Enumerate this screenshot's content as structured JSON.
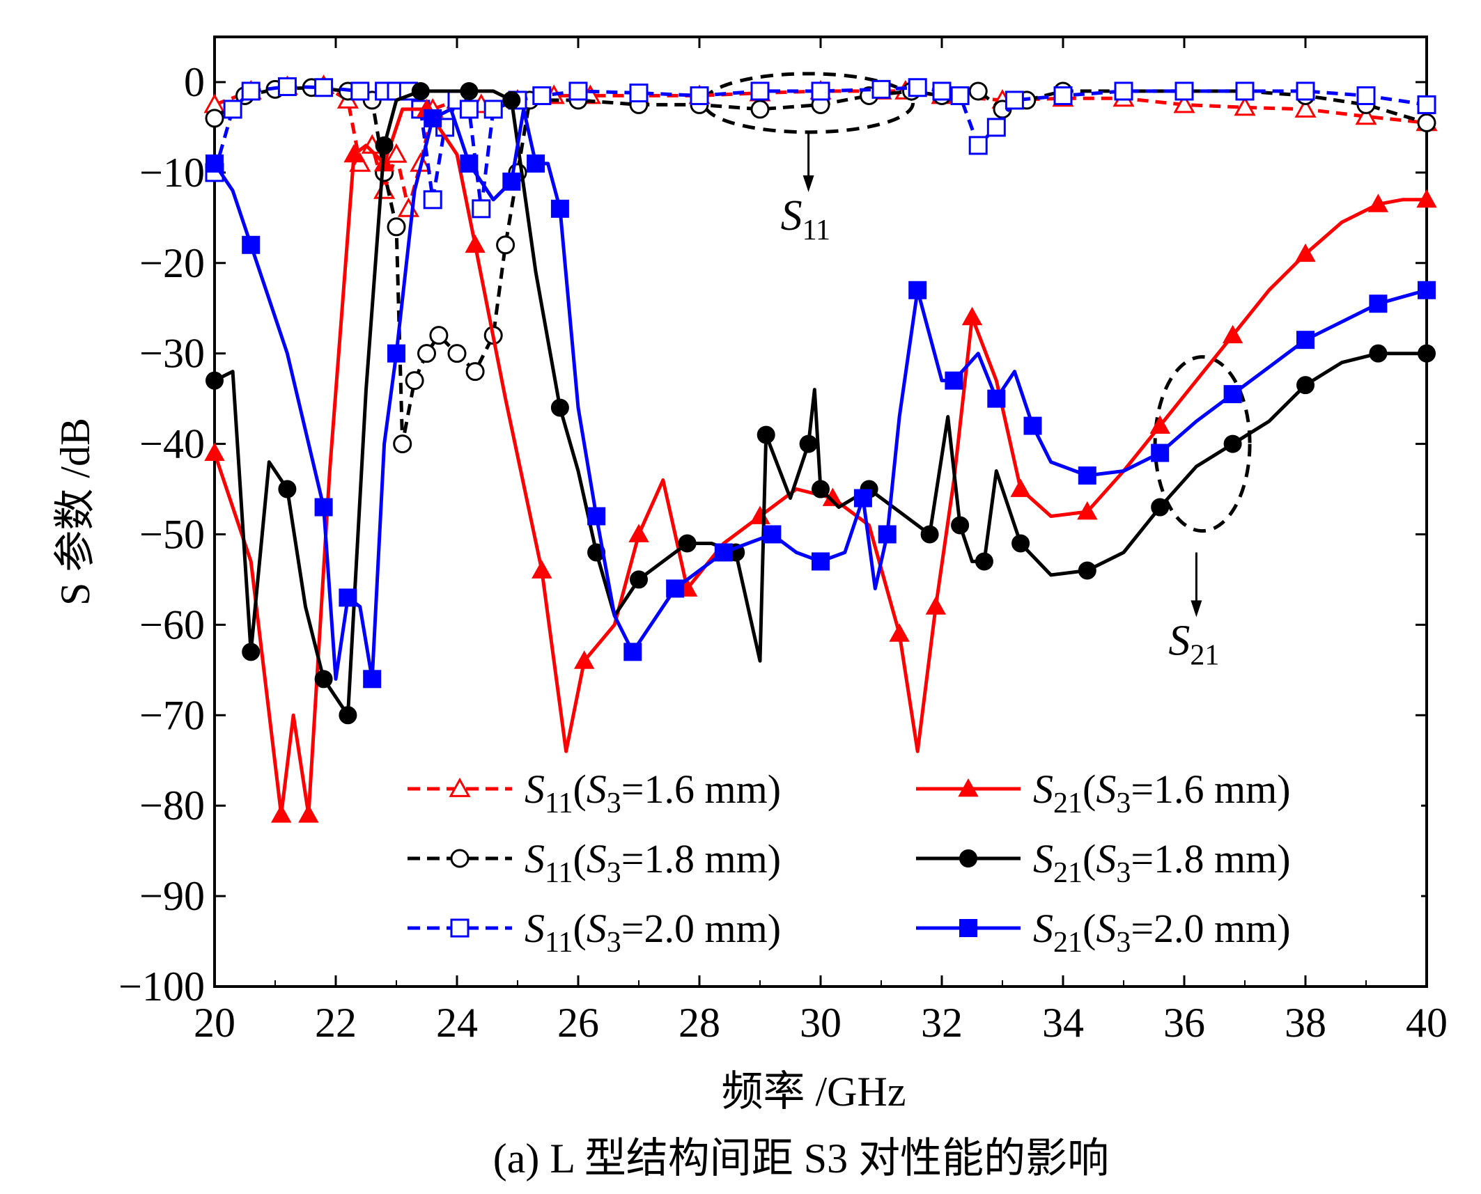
{
  "chart_data": {
    "type": "line",
    "title": "",
    "caption": "(a) L 型结构间距 S3 对性能的影响",
    "xlabel": "频率 /GHz",
    "ylabel": "S 参数 /dB",
    "xlim": [
      20,
      40
    ],
    "ylim": [
      -100,
      5
    ],
    "xticks": [
      20,
      22,
      24,
      26,
      28,
      30,
      32,
      34,
      36,
      38,
      40
    ],
    "yticks": [
      0,
      -10,
      -20,
      -30,
      -40,
      -50,
      -60,
      -70,
      -80,
      -90,
      -100
    ],
    "xtick_labels": [
      "20",
      "22",
      "24",
      "26",
      "28",
      "30",
      "32",
      "34",
      "36",
      "38",
      "40"
    ],
    "ytick_labels": [
      "0",
      "−10",
      "−20",
      "−30",
      "−40",
      "−50",
      "−60",
      "−70",
      "−80",
      "−90",
      "−100"
    ],
    "grid": false,
    "legend_position": "lower-right",
    "annotations": [
      {
        "text": "S11",
        "base": "S",
        "sub": "11",
        "x": 29.8,
        "y": -14,
        "arrow_from": [
          29.8,
          -5.5
        ],
        "arrow_to": [
          29.8,
          -12
        ]
      },
      {
        "text": "S21",
        "base": "S",
        "sub": "21",
        "x": 36.2,
        "y": -61,
        "arrow_from": [
          36.2,
          -52
        ],
        "arrow_to": [
          36.2,
          -59
        ]
      }
    ],
    "series": [
      {
        "name": "S11(S3=1.6 mm)",
        "param": "S11",
        "s3": "1.6 mm",
        "color": "#ff0000",
        "dashed": true,
        "marker": "triangle-open",
        "x": [
          20,
          20.6,
          21.2,
          21.8,
          22.2,
          22.4,
          22.6,
          22.8,
          23.0,
          23.2,
          23.4,
          23.6,
          24.0,
          24.4,
          25.0,
          25.6,
          26.2,
          27.0,
          28.0,
          29.0,
          30.0,
          31.0,
          31.4,
          32.0,
          33.0,
          34.0,
          35.0,
          36.0,
          37.0,
          38.0,
          39.0,
          40.0
        ],
        "y": [
          -2.5,
          -1.0,
          -0.5,
          -0.4,
          -2.0,
          -9.0,
          -7.0,
          -12.0,
          -8.0,
          -14.0,
          -9.0,
          -3.0,
          -2.0,
          -2.5,
          -2.0,
          -1.5,
          -1.5,
          -1.5,
          -1.5,
          -1.2,
          -1.0,
          -1.0,
          -1.0,
          -1.5,
          -2.0,
          -1.8,
          -1.8,
          -2.5,
          -2.8,
          -3.0,
          -3.8,
          -4.5
        ]
      },
      {
        "name": "S11(S3=1.8 mm)",
        "param": "S11",
        "s3": "1.8 mm",
        "color": "#000000",
        "dashed": true,
        "marker": "circle-open",
        "x": [
          20,
          20.5,
          21.0,
          21.6,
          22.2,
          22.6,
          22.8,
          23.0,
          23.1,
          23.3,
          23.5,
          23.7,
          24.0,
          24.3,
          24.6,
          24.8,
          25.0,
          25.2,
          26.0,
          27.0,
          28.0,
          29.0,
          30.0,
          30.8,
          31.5,
          32.0,
          32.6,
          33.0,
          33.4,
          34.0,
          35.0,
          36.0,
          37.0,
          38.0,
          39.0,
          40.0
        ],
        "y": [
          -4.0,
          -1.5,
          -0.8,
          -0.6,
          -1.0,
          -2.0,
          -10.0,
          -16.0,
          -40.0,
          -33.0,
          -30.0,
          -28.0,
          -30.0,
          -32.0,
          -28.0,
          -18.0,
          -10.0,
          -2.0,
          -2.0,
          -2.5,
          -2.5,
          -3.0,
          -2.5,
          -1.5,
          -1.0,
          -1.5,
          -1.0,
          -3.0,
          -2.0,
          -1.0,
          -1.0,
          -1.0,
          -1.0,
          -1.5,
          -2.5,
          -4.5
        ]
      },
      {
        "name": "S11(S3=2.0 mm)",
        "param": "S11",
        "s3": "2.0 mm",
        "color": "#0000ff",
        "dashed": true,
        "marker": "square-open",
        "x": [
          20,
          20.3,
          20.6,
          21.2,
          21.8,
          22.4,
          22.8,
          23.0,
          23.2,
          23.4,
          23.6,
          23.8,
          24.0,
          24.2,
          24.4,
          24.6,
          25.0,
          25.4,
          26.0,
          27.0,
          28.0,
          29.0,
          30.0,
          31.0,
          31.6,
          32.0,
          32.3,
          32.6,
          32.9,
          33.2,
          34.0,
          35.0,
          36.0,
          37.0,
          38.0,
          39.0,
          40.0
        ],
        "y": [
          -10.0,
          -3.0,
          -1.0,
          -0.5,
          -0.6,
          -1.0,
          -1.0,
          -1.0,
          -1.0,
          -3.0,
          -13.0,
          -5.0,
          -2.0,
          -3.0,
          -14.0,
          -3.0,
          -2.0,
          -1.5,
          -1.0,
          -1.2,
          -1.5,
          -1.0,
          -1.0,
          -0.8,
          -0.6,
          -1.0,
          -1.5,
          -7.0,
          -5.0,
          -2.0,
          -1.5,
          -1.0,
          -1.0,
          -1.0,
          -1.0,
          -1.5,
          -2.5
        ]
      },
      {
        "name": "S21(S3=1.6 mm)",
        "param": "S21",
        "s3": "1.6 mm",
        "color": "#ff0000",
        "dashed": false,
        "marker": "triangle-filled",
        "x": [
          20,
          20.6,
          21.1,
          21.3,
          21.55,
          21.9,
          22.3,
          22.5,
          22.8,
          23.1,
          23.5,
          24.0,
          24.3,
          24.8,
          25.4,
          25.8,
          26.1,
          26.6,
          27.0,
          27.4,
          27.8,
          28.4,
          29.0,
          29.6,
          30.2,
          30.8,
          31.3,
          31.6,
          31.9,
          32.2,
          32.5,
          32.9,
          33.3,
          33.8,
          34.4,
          35.0,
          35.6,
          36.2,
          36.8,
          37.4,
          38.0,
          38.6,
          39.2,
          39.6,
          40.0
        ],
        "y": [
          -41,
          -53,
          -81,
          -70,
          -81,
          -43,
          -8,
          -7,
          -9,
          -3,
          -3,
          -8,
          -18,
          -35,
          -54,
          -74,
          -64,
          -60,
          -50,
          -44,
          -56,
          -51,
          -48,
          -45,
          -46,
          -49,
          -61,
          -74,
          -58,
          -44,
          -26,
          -33,
          -45,
          -48,
          -47.5,
          -43,
          -38,
          -33,
          -28,
          -23,
          -19,
          -15.5,
          -13.5,
          -13,
          -13
        ]
      },
      {
        "name": "S21(S3=1.8 mm)",
        "param": "S21",
        "s3": "1.8 mm",
        "color": "#000000",
        "dashed": false,
        "marker": "circle-filled",
        "x": [
          20,
          20.3,
          20.6,
          20.9,
          21.2,
          21.5,
          21.8,
          22.0,
          22.2,
          22.5,
          22.8,
          23.0,
          23.4,
          23.8,
          24.2,
          24.6,
          24.9,
          25.3,
          25.7,
          26.0,
          26.3,
          26.6,
          27.0,
          27.4,
          27.8,
          28.2,
          28.6,
          29.0,
          29.1,
          29.5,
          29.8,
          29.9,
          30.0,
          30.3,
          30.8,
          31.2,
          31.8,
          32.1,
          32.3,
          32.5,
          32.7,
          32.9,
          33.3,
          33.8,
          34.4,
          35.0,
          35.6,
          36.2,
          36.8,
          37.4,
          38.0,
          38.6,
          39.2,
          39.6,
          40.0
        ],
        "y": [
          -33,
          -32,
          -63,
          -42,
          -45,
          -58,
          -66,
          -68,
          -70,
          -34,
          -7,
          -2,
          -1,
          -1,
          -1,
          -1,
          -2,
          -21,
          -36,
          -43,
          -52,
          -59,
          -55,
          -53,
          -51,
          -51,
          -52,
          -64,
          -39,
          -46,
          -40,
          -34,
          -45,
          -47,
          -45,
          -47,
          -50,
          -37,
          -49,
          -53,
          -53,
          -43,
          -51,
          -54.5,
          -54,
          -52,
          -47,
          -42.5,
          -40,
          -37.5,
          -33.5,
          -31,
          -30,
          -30,
          -30
        ]
      },
      {
        "name": "S21(S3=2.0 mm)",
        "param": "S21",
        "s3": "2.0 mm",
        "color": "#0000ff",
        "dashed": false,
        "marker": "square-filled",
        "x": [
          20,
          20.3,
          20.6,
          21.2,
          21.8,
          22.0,
          22.2,
          22.4,
          22.6,
          22.8,
          23.0,
          23.3,
          23.6,
          23.9,
          24.2,
          24.6,
          24.9,
          25.1,
          25.3,
          25.5,
          25.7,
          26.0,
          26.3,
          26.6,
          26.9,
          27.2,
          27.6,
          28.0,
          28.4,
          28.8,
          29.2,
          29.6,
          30.0,
          30.4,
          30.7,
          30.9,
          31.1,
          31.3,
          31.6,
          32.0,
          32.2,
          32.6,
          32.9,
          33.2,
          33.5,
          33.8,
          34.4,
          35.0,
          35.6,
          36.2,
          36.8,
          37.4,
          38.0,
          38.6,
          39.2,
          40.0
        ],
        "y": [
          -9,
          -12,
          -18,
          -30,
          -47,
          -66,
          -57,
          -58,
          -66,
          -40,
          -30,
          -12,
          -4,
          -3,
          -9,
          -13,
          -11,
          -3,
          -9,
          -9,
          -14,
          -36,
          -48,
          -59,
          -63,
          -60,
          -56,
          -54,
          -52,
          -51,
          -50,
          -52,
          -53,
          -52,
          -46,
          -56,
          -50,
          -37,
          -23,
          -33,
          -33,
          -30,
          -35,
          -32,
          -38,
          -42,
          -43.5,
          -43,
          -41,
          -37.5,
          -34.5,
          -31.5,
          -28.5,
          -26.5,
          -24.5,
          -23
        ]
      }
    ]
  }
}
